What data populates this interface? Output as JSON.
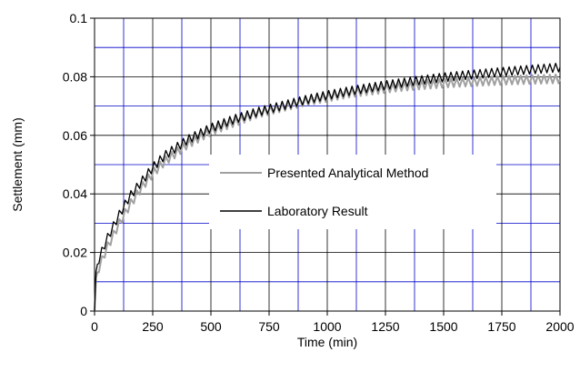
{
  "chart_data": {
    "type": "line",
    "title": "",
    "xlabel": "Time (min)",
    "ylabel": "Settlement (mm)",
    "xlim": [
      0,
      2000
    ],
    "ylim": [
      0,
      0.1
    ],
    "x_ticks": [
      "0",
      "250",
      "500",
      "750",
      "1000",
      "1250",
      "1500",
      "1750",
      "2000"
    ],
    "y_ticks": [
      "0",
      "0.02",
      "0.04",
      "0.06",
      "0.08",
      "0.1"
    ],
    "grid": true,
    "grid_colors": {
      "major": "#000000",
      "minor": "#0000cc"
    },
    "legend_position": "center",
    "series": [
      {
        "name": "Presented Analytical Method",
        "color": "#a0a0a0",
        "oscillation": {
          "period_min": 25,
          "amplitude": 0.0015
        },
        "x": [
          0,
          5,
          15,
          30,
          50,
          75,
          100,
          150,
          200,
          250,
          300,
          400,
          500,
          600,
          700,
          800,
          900,
          1000,
          1100,
          1200,
          1300,
          1400,
          1500,
          1600,
          1700,
          1800,
          1900,
          2000
        ],
        "y": [
          0,
          0.011,
          0.014,
          0.017,
          0.021,
          0.025,
          0.029,
          0.036,
          0.042,
          0.047,
          0.051,
          0.057,
          0.0615,
          0.0645,
          0.0675,
          0.0695,
          0.0715,
          0.073,
          0.0745,
          0.0755,
          0.0765,
          0.0772,
          0.0778,
          0.0782,
          0.0786,
          0.0789,
          0.0791,
          0.0793
        ]
      },
      {
        "name": "Laboratory Result",
        "color": "#000000",
        "oscillation": {
          "period_min": 25,
          "amplitude": 0.0015
        },
        "x": [
          0,
          5,
          15,
          30,
          50,
          75,
          100,
          150,
          200,
          250,
          300,
          400,
          500,
          600,
          700,
          800,
          900,
          1000,
          1100,
          1200,
          1300,
          1400,
          1500,
          1600,
          1700,
          1800,
          1900,
          2000
        ],
        "y": [
          0,
          0.013,
          0.017,
          0.02,
          0.024,
          0.028,
          0.032,
          0.039,
          0.044,
          0.049,
          0.053,
          0.0585,
          0.0625,
          0.0655,
          0.068,
          0.07,
          0.072,
          0.0737,
          0.0752,
          0.0765,
          0.0777,
          0.0788,
          0.0798,
          0.0806,
          0.0813,
          0.082,
          0.0826,
          0.0832
        ]
      }
    ]
  }
}
